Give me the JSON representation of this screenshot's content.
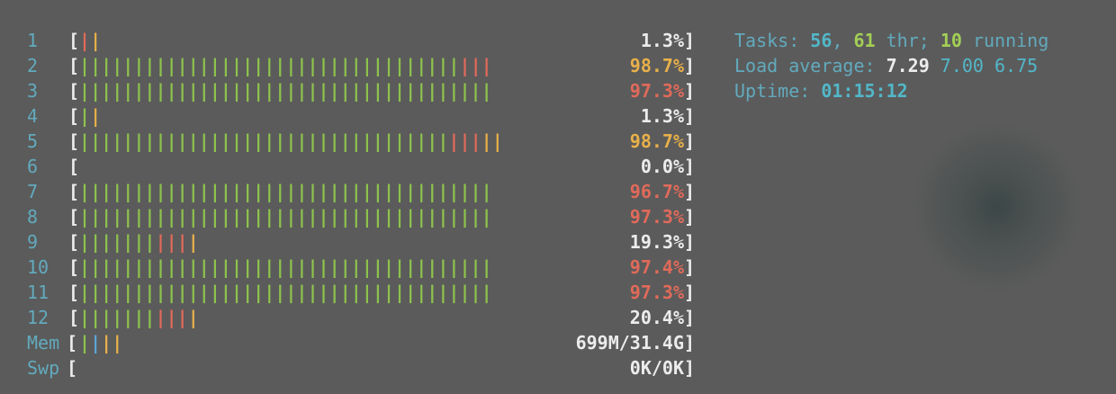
{
  "meters": [
    {
      "label": "1",
      "bar": "r1y1",
      "value": "1.3%",
      "value_color": "#ececec"
    },
    {
      "label": "2",
      "bar": "g35r3",
      "value": "98.7%",
      "value_color": "#e8b04a"
    },
    {
      "label": "3",
      "bar": "g38",
      "value": "97.3%",
      "value_color": "#e06a5a"
    },
    {
      "label": "4",
      "bar": "g1y1",
      "value": "1.3%",
      "value_color": "#ececec"
    },
    {
      "label": "5",
      "bar": "g34r3y2",
      "value": "98.7%",
      "value_color": "#e8b04a"
    },
    {
      "label": "6",
      "bar": "",
      "value": "0.0%",
      "value_color": "#ececec"
    },
    {
      "label": "7",
      "bar": "g38",
      "value": "96.7%",
      "value_color": "#e06a5a"
    },
    {
      "label": "8",
      "bar": "g38",
      "value": "97.3%",
      "value_color": "#e06a5a"
    },
    {
      "label": "9",
      "bar": "g7r3y1",
      "value": "19.3%",
      "value_color": "#ececec"
    },
    {
      "label": "10",
      "bar": "g38",
      "value": "97.4%",
      "value_color": "#e06a5a"
    },
    {
      "label": "11",
      "bar": "g38",
      "value": "97.3%",
      "value_color": "#e06a5a"
    },
    {
      "label": "12",
      "bar": "g7r3y1",
      "value": "20.4%",
      "value_color": "#ececec"
    },
    {
      "label": "Mem",
      "bar": "g1b1y2",
      "value": "699M/31.4G",
      "value_color": "#ececec"
    },
    {
      "label": "Swp",
      "bar": "",
      "value": "0K/0K",
      "value_color": "#ececec"
    }
  ],
  "info": {
    "tasks_label": "Tasks: ",
    "tasks": "56",
    "sep1": ", ",
    "threads": "61",
    "thr_label": " thr; ",
    "running": "10",
    "running_label": " running",
    "load_label": "Load average: ",
    "load1": "7.29",
    "load5": "7.00",
    "load15": "6.75",
    "uptime_label": "Uptime: ",
    "uptime": "01:15:12"
  },
  "colors": {
    "green": "#8dc24d",
    "red": "#e06a5a",
    "yellow": "#e8b04a",
    "blue": "#5da6d8",
    "label": "#62aabd",
    "text": "#ececec",
    "background": "#5b5b5b"
  }
}
